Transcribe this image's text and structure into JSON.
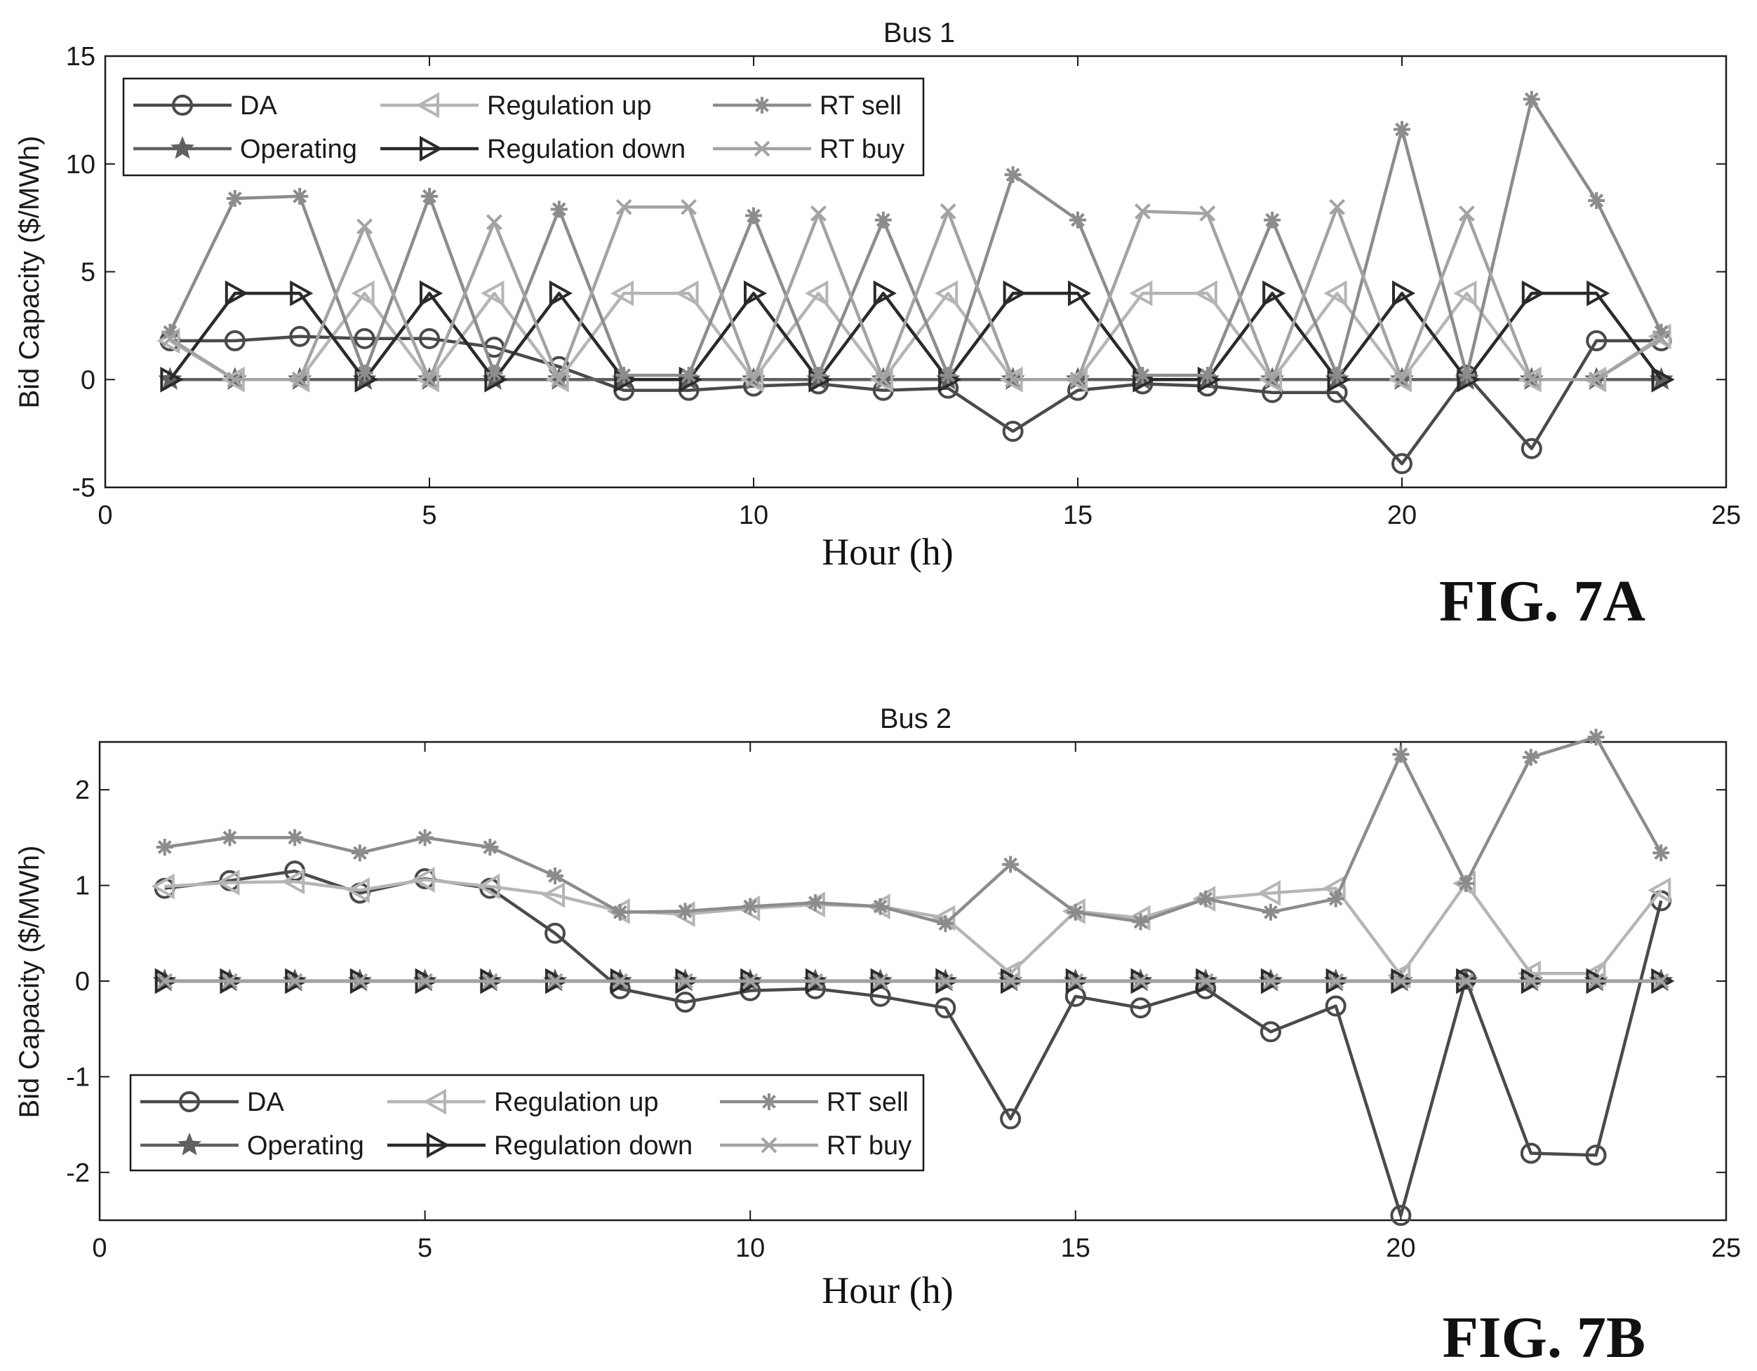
{
  "chart_data": [
    {
      "type": "line",
      "title": "Bus 1",
      "xlabel": "Hour (h)",
      "ylabel": "Bid Capacity ($/MWh)",
      "xlim": [
        0,
        25
      ],
      "ylim": [
        -5,
        15
      ],
      "xticks": [
        0,
        5,
        10,
        15,
        20,
        25
      ],
      "yticks": [
        -5,
        0,
        5,
        10,
        15
      ],
      "legend_position": "top-left",
      "legend_columns": 3,
      "x": [
        1,
        2,
        3,
        4,
        5,
        6,
        7,
        8,
        9,
        10,
        11,
        12,
        13,
        14,
        15,
        16,
        17,
        18,
        19,
        20,
        21,
        22,
        23,
        24
      ],
      "series": [
        {
          "name": "DA",
          "marker": "circle",
          "color": "#4a4a4a",
          "values": [
            1.8,
            1.8,
            2.0,
            1.9,
            1.9,
            1.5,
            0.6,
            -0.5,
            -0.5,
            -0.3,
            -0.2,
            -0.5,
            -0.4,
            -2.4,
            -0.5,
            -0.2,
            -0.3,
            -0.6,
            -0.6,
            -3.9,
            0.2,
            -3.2,
            1.8,
            1.8
          ]
        },
        {
          "name": "Operating",
          "marker": "star",
          "color": "#606060",
          "values": [
            0,
            0,
            0,
            0,
            0,
            0,
            0,
            0,
            0,
            0,
            0,
            0,
            0,
            0,
            0,
            0,
            0,
            0,
            0,
            0,
            0,
            0,
            0,
            0
          ]
        },
        {
          "name": "Regulation up",
          "marker": "triangle-left",
          "color": "#b5b5b5",
          "values": [
            1.8,
            0,
            0,
            4,
            0,
            4,
            0,
            4,
            4,
            0,
            4,
            0,
            4,
            0,
            0,
            4,
            4,
            0,
            4,
            0,
            4,
            0,
            0,
            2
          ]
        },
        {
          "name": "Regulation down",
          "marker": "triangle-right",
          "color": "#2a2a2a",
          "values": [
            0,
            4,
            4,
            0,
            4,
            0,
            4,
            0,
            0,
            4,
            0,
            4,
            0,
            4,
            4,
            0,
            0,
            4,
            0,
            4,
            0,
            4,
            4,
            0
          ]
        },
        {
          "name": "RT sell",
          "marker": "asterisk",
          "color": "#8c8c8c",
          "values": [
            2.2,
            8.4,
            8.5,
            0.3,
            8.5,
            0.3,
            7.9,
            0.2,
            0.2,
            7.6,
            0.2,
            7.4,
            0.2,
            9.5,
            7.4,
            0.2,
            0.2,
            7.4,
            0.2,
            11.6,
            0.2,
            13.0,
            8.3,
            2.2
          ]
        },
        {
          "name": "RT buy",
          "marker": "x",
          "color": "#a3a3a3",
          "values": [
            1.9,
            0,
            0,
            7.1,
            0,
            7.3,
            0,
            8.0,
            8.0,
            0,
            7.7,
            0,
            7.8,
            0,
            0,
            7.8,
            7.7,
            0,
            8.0,
            0,
            7.7,
            0,
            0,
            1.9
          ]
        }
      ]
    },
    {
      "type": "line",
      "title": "Bus 2",
      "xlabel": "Hour (h)",
      "ylabel": "Bid Capacity ($/MWh)",
      "xlim": [
        0,
        25
      ],
      "ylim": [
        -2.5,
        2.5
      ],
      "xticks": [
        0,
        5,
        10,
        15,
        20,
        25
      ],
      "yticks": [
        -2,
        -1,
        0,
        1,
        2
      ],
      "legend_position": "bottom-left",
      "legend_columns": 3,
      "x": [
        1,
        2,
        3,
        4,
        5,
        6,
        7,
        8,
        9,
        10,
        11,
        12,
        13,
        14,
        15,
        16,
        17,
        18,
        19,
        20,
        21,
        22,
        23,
        24
      ],
      "series": [
        {
          "name": "DA",
          "marker": "circle",
          "color": "#4a4a4a",
          "values": [
            0.97,
            1.05,
            1.15,
            0.92,
            1.07,
            0.97,
            0.5,
            -0.08,
            -0.22,
            -0.1,
            -0.08,
            -0.16,
            -0.28,
            -1.44,
            -0.16,
            -0.28,
            -0.08,
            -0.53,
            -0.26,
            -2.45,
            0.02,
            -1.8,
            -1.82,
            0.84
          ]
        },
        {
          "name": "Operating",
          "marker": "star",
          "color": "#606060",
          "values": [
            0,
            0,
            0,
            0,
            0,
            0,
            0,
            0,
            0,
            0,
            0,
            0,
            0,
            0,
            0,
            0,
            0,
            0,
            0,
            0,
            0,
            0,
            0,
            0
          ]
        },
        {
          "name": "Regulation up",
          "marker": "triangle-left",
          "color": "#b5b5b5",
          "values": [
            0.99,
            1.03,
            1.04,
            0.95,
            1.06,
            0.99,
            0.9,
            0.73,
            0.7,
            0.76,
            0.8,
            0.78,
            0.66,
            0.08,
            0.73,
            0.66,
            0.86,
            0.92,
            0.97,
            0.06,
            1.02,
            0.08,
            0.08,
            0.95
          ]
        },
        {
          "name": "Regulation down",
          "marker": "triangle-right",
          "color": "#2a2a2a",
          "values": [
            0,
            0,
            0,
            0,
            0,
            0,
            0,
            0,
            0,
            0,
            0,
            0,
            0,
            0,
            0,
            0,
            0,
            0,
            0,
            0,
            0,
            0,
            0,
            0
          ]
        },
        {
          "name": "RT sell",
          "marker": "asterisk",
          "color": "#8c8c8c",
          "values": [
            1.4,
            1.5,
            1.5,
            1.34,
            1.5,
            1.4,
            1.1,
            0.72,
            0.73,
            0.78,
            0.82,
            0.78,
            0.6,
            1.22,
            0.72,
            0.62,
            0.86,
            0.72,
            0.86,
            2.37,
            1.02,
            2.34,
            2.55,
            1.34
          ]
        },
        {
          "name": "RT buy",
          "marker": "x",
          "color": "#a3a3a3",
          "values": [
            0,
            0,
            0,
            0,
            0,
            0,
            0,
            0,
            0,
            0,
            0,
            0,
            0,
            0,
            0,
            0,
            0,
            0,
            0,
            0,
            0,
            0,
            0,
            0
          ]
        }
      ]
    }
  ],
  "figure_labels": [
    "FIG. 7A",
    "FIG. 7B"
  ]
}
